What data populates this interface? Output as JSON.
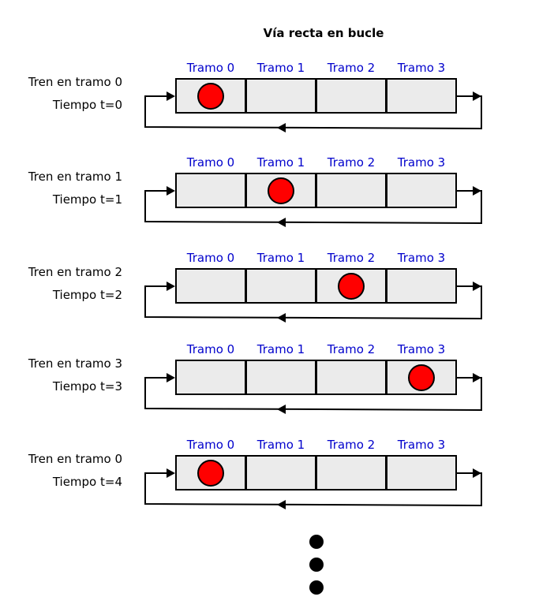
{
  "title": "Vía recta en bucle",
  "segment_labels": [
    "Tramo 0",
    "Tramo 1",
    "Tramo 2",
    "Tramo 3"
  ],
  "colors": {
    "segment_label": "#0000cc",
    "cell_fill": "#ebebeb",
    "train": "#ff0000"
  },
  "steps": [
    {
      "train_label": "Tren en tramo 0",
      "time_label": "Tiempo t=0",
      "train_segment": 0
    },
    {
      "train_label": "Tren en tramo 1",
      "time_label": "Tiempo t=1",
      "train_segment": 1
    },
    {
      "train_label": "Tren en tramo 2",
      "time_label": "Tiempo t=2",
      "train_segment": 2
    },
    {
      "train_label": "Tren en tramo 3",
      "time_label": "Tiempo t=3",
      "train_segment": 3
    },
    {
      "train_label": "Tren en tramo 0",
      "time_label": "Tiempo t=4",
      "train_segment": 0
    }
  ],
  "continuation_dots": 3
}
